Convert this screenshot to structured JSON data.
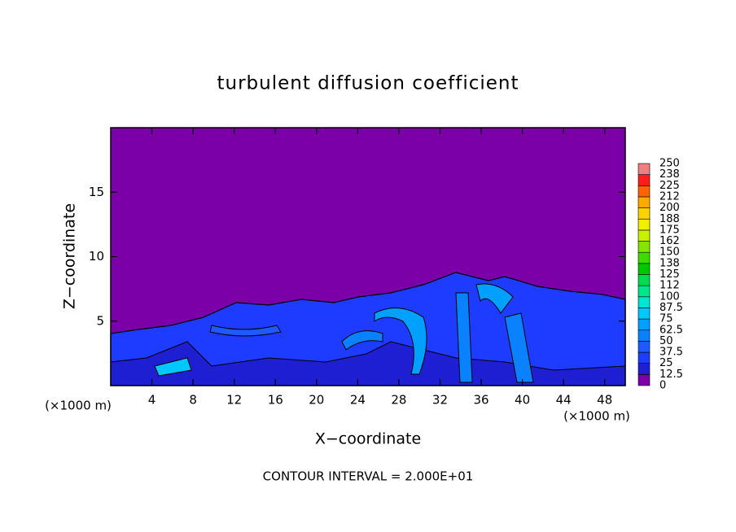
{
  "chart_data": {
    "type": "contourf",
    "title": "turbulent diffusion coefficient",
    "x_label": "X−coordinate",
    "y_label": "Z−coordinate",
    "x_unit_left": "(×1000 m)",
    "x_unit_right": "(×1000 m)",
    "footer": "CONTOUR INTERVAL = 2.000E+01",
    "xlim": [
      0,
      50
    ],
    "xticks": [
      4,
      8,
      12,
      16,
      20,
      24,
      28,
      32,
      36,
      40,
      44,
      48
    ],
    "ylim": [
      0,
      20
    ],
    "yticks": [
      5,
      10,
      15
    ],
    "colorbar": {
      "levels": [
        0,
        12.5,
        25,
        37.5,
        50,
        62.5,
        75,
        87.5,
        100,
        112,
        125,
        138,
        150,
        162,
        175,
        188,
        200,
        212,
        225,
        238,
        250
      ],
      "colors": [
        "#7b00a8",
        "#1e1ed2",
        "#1e3cff",
        "#1e5aff",
        "#0a82ff",
        "#00a0ff",
        "#00c8ff",
        "#00e6d2",
        "#00e68c",
        "#00dc50",
        "#00c800",
        "#3cdc00",
        "#82e600",
        "#c8f000",
        "#f0f000",
        "#ffd200",
        "#ffaa00",
        "#ff6400",
        "#ff1e1e",
        "#f08080"
      ]
    }
  }
}
